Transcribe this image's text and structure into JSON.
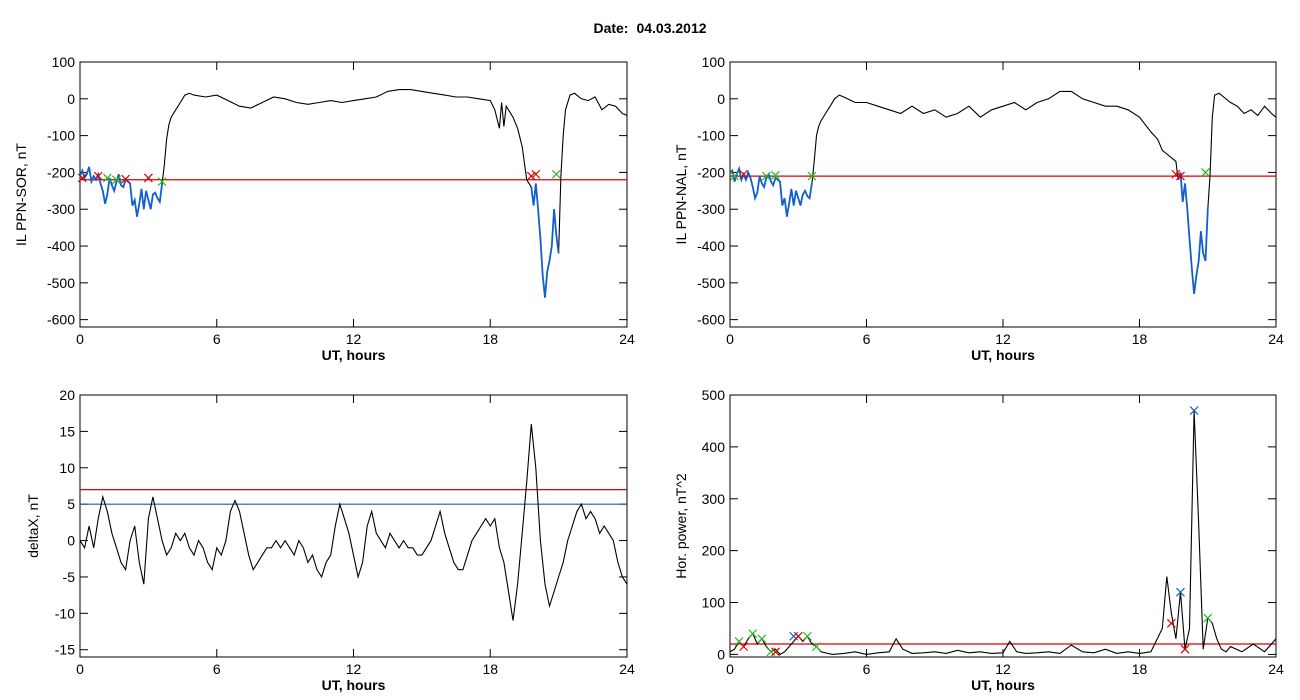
{
  "header": {
    "date_label": "Date:",
    "date_value": "04.03.2012"
  },
  "colors": {
    "trace": "#000000",
    "threshold_red": "#dd0000",
    "threshold_blue": "#1060b0",
    "highlight_blue": "#1060d0",
    "marker_red": "#dd0000",
    "marker_green": "#22bb22",
    "marker_blue": "#1060d0"
  },
  "chart_data": [
    {
      "type": "line",
      "ylabel": "IL PPN-SOR, nT",
      "xlabel": "UT, hours",
      "xlim": [
        0,
        24
      ],
      "ylim": [
        -620,
        100
      ],
      "xticks": [
        0,
        6,
        12,
        18,
        24
      ],
      "yticks": [
        100,
        0,
        -100,
        -200,
        -300,
        -400,
        -500,
        -600
      ],
      "threshold_red": -220,
      "highlight_intervals": [
        [
          0,
          3.6
        ],
        [
          19.8,
          21.0
        ]
      ],
      "x": [
        0,
        0.1,
        0.2,
        0.3,
        0.4,
        0.5,
        0.6,
        0.7,
        0.8,
        0.9,
        1.0,
        1.1,
        1.2,
        1.3,
        1.4,
        1.5,
        1.6,
        1.7,
        1.8,
        1.9,
        2.0,
        2.1,
        2.2,
        2.3,
        2.4,
        2.5,
        2.6,
        2.7,
        2.8,
        2.9,
        3.0,
        3.1,
        3.2,
        3.3,
        3.4,
        3.5,
        3.6,
        3.7,
        3.8,
        3.9,
        4.0,
        4.2,
        4.4,
        4.6,
        4.8,
        5.0,
        5.5,
        6.0,
        6.5,
        7.0,
        7.5,
        8.0,
        8.5,
        9.0,
        9.5,
        10.0,
        10.5,
        11.0,
        11.5,
        12.0,
        12.5,
        13.0,
        13.5,
        14.0,
        14.5,
        15.0,
        15.5,
        16.0,
        16.5,
        17.0,
        17.5,
        18.0,
        18.2,
        18.4,
        18.5,
        18.6,
        18.7,
        18.8,
        19.0,
        19.2,
        19.4,
        19.6,
        19.8,
        19.9,
        20.0,
        20.1,
        20.2,
        20.3,
        20.4,
        20.5,
        20.6,
        20.7,
        20.8,
        20.9,
        21.0,
        21.1,
        21.2,
        21.3,
        21.5,
        21.7,
        22.0,
        22.3,
        22.6,
        22.9,
        23.2,
        23.5,
        23.8,
        24.0
      ],
      "y": [
        -210,
        -195,
        -215,
        -205,
        -185,
        -225,
        -210,
        -220,
        -205,
        -230,
        -250,
        -285,
        -260,
        -215,
        -235,
        -250,
        -225,
        -205,
        -235,
        -240,
        -220,
        -225,
        -230,
        -290,
        -275,
        -320,
        -285,
        -245,
        -300,
        -250,
        -275,
        -300,
        -260,
        -255,
        -270,
        -280,
        -230,
        -180,
        -110,
        -70,
        -50,
        -30,
        -10,
        10,
        15,
        10,
        5,
        10,
        -5,
        -20,
        -25,
        -10,
        5,
        0,
        -10,
        -15,
        -10,
        -5,
        -10,
        -5,
        0,
        5,
        20,
        25,
        25,
        20,
        15,
        10,
        5,
        5,
        0,
        -5,
        -30,
        -80,
        -10,
        -75,
        -20,
        -30,
        -50,
        -80,
        -130,
        -220,
        -240,
        -290,
        -230,
        -300,
        -380,
        -480,
        -540,
        -470,
        -440,
        -400,
        -300,
        -370,
        -420,
        -210,
        -100,
        -30,
        10,
        15,
        0,
        -5,
        5,
        -30,
        -15,
        -20,
        -40,
        -45
      ],
      "markers": [
        {
          "x": 0.1,
          "y": -215,
          "color": "red"
        },
        {
          "x": 0.8,
          "y": -210,
          "color": "red"
        },
        {
          "x": 1.2,
          "y": -215,
          "color": "green"
        },
        {
          "x": 1.6,
          "y": -220,
          "color": "green"
        },
        {
          "x": 2.0,
          "y": -218,
          "color": "red"
        },
        {
          "x": 3.0,
          "y": -215,
          "color": "red"
        },
        {
          "x": 3.6,
          "y": -225,
          "color": "green"
        },
        {
          "x": 19.8,
          "y": -210,
          "color": "red"
        },
        {
          "x": 20.0,
          "y": -205,
          "color": "red"
        },
        {
          "x": 20.9,
          "y": -205,
          "color": "green"
        }
      ]
    },
    {
      "type": "line",
      "ylabel": "IL PPN-NAL, nT",
      "xlabel": "UT, hours",
      "xlim": [
        0,
        24
      ],
      "ylim": [
        -620,
        100
      ],
      "xticks": [
        0,
        6,
        12,
        18,
        24
      ],
      "yticks": [
        100,
        0,
        -100,
        -200,
        -300,
        -400,
        -500,
        -600
      ],
      "threshold_red": -210,
      "highlight_intervals": [
        [
          0,
          3.6
        ],
        [
          19.7,
          21.0
        ]
      ],
      "x": [
        0,
        0.1,
        0.2,
        0.3,
        0.4,
        0.5,
        0.6,
        0.7,
        0.8,
        0.9,
        1.0,
        1.1,
        1.2,
        1.3,
        1.4,
        1.5,
        1.6,
        1.7,
        1.8,
        1.9,
        2.0,
        2.1,
        2.2,
        2.3,
        2.4,
        2.5,
        2.6,
        2.7,
        2.8,
        2.9,
        3.0,
        3.1,
        3.2,
        3.3,
        3.4,
        3.5,
        3.6,
        3.7,
        3.8,
        3.9,
        4.0,
        4.2,
        4.4,
        4.6,
        4.8,
        5.0,
        5.5,
        6.0,
        6.5,
        7.0,
        7.5,
        8.0,
        8.5,
        9.0,
        9.5,
        10.0,
        10.5,
        11.0,
        11.5,
        12.0,
        12.5,
        13.0,
        13.5,
        14.0,
        14.5,
        15.0,
        15.5,
        16.0,
        16.5,
        17.0,
        17.5,
        18.0,
        18.5,
        18.8,
        19.0,
        19.2,
        19.4,
        19.6,
        19.7,
        19.8,
        19.9,
        20.0,
        20.1,
        20.2,
        20.3,
        20.4,
        20.5,
        20.6,
        20.7,
        20.8,
        20.9,
        21.0,
        21.1,
        21.2,
        21.3,
        21.5,
        21.7,
        22.0,
        22.3,
        22.6,
        22.9,
        23.2,
        23.5,
        23.8,
        24.0
      ],
      "y": [
        -200,
        -195,
        -225,
        -205,
        -190,
        -220,
        -205,
        -220,
        -200,
        -215,
        -240,
        -270,
        -255,
        -210,
        -230,
        -240,
        -215,
        -205,
        -225,
        -235,
        -215,
        -220,
        -225,
        -290,
        -270,
        -320,
        -285,
        -245,
        -290,
        -250,
        -270,
        -290,
        -260,
        -250,
        -265,
        -270,
        -230,
        -170,
        -100,
        -75,
        -60,
        -40,
        -20,
        0,
        10,
        5,
        -10,
        -10,
        -20,
        -30,
        -40,
        -20,
        -40,
        -30,
        -50,
        -40,
        -20,
        -50,
        -30,
        -20,
        -10,
        -30,
        -10,
        0,
        20,
        20,
        0,
        -10,
        -20,
        -20,
        -30,
        -50,
        -90,
        -110,
        -140,
        -150,
        -160,
        -170,
        -220,
        -200,
        -280,
        -230,
        -300,
        -380,
        -460,
        -530,
        -480,
        -440,
        -360,
        -420,
        -440,
        -300,
        -210,
        -50,
        10,
        15,
        5,
        -10,
        -20,
        -40,
        -30,
        -45,
        -20,
        -40,
        -50
      ],
      "markers": [
        {
          "x": 0.2,
          "y": -210,
          "color": "green"
        },
        {
          "x": 0.6,
          "y": -205,
          "color": "red"
        },
        {
          "x": 1.6,
          "y": -210,
          "color": "green"
        },
        {
          "x": 2.0,
          "y": -208,
          "color": "green"
        },
        {
          "x": 3.6,
          "y": -210,
          "color": "green"
        },
        {
          "x": 19.6,
          "y": -205,
          "color": "red"
        },
        {
          "x": 19.8,
          "y": -210,
          "color": "red"
        },
        {
          "x": 20.9,
          "y": -200,
          "color": "green"
        }
      ]
    },
    {
      "type": "line",
      "ylabel": "deltaX, nT",
      "xlabel": "UT, hours",
      "xlim": [
        0,
        24
      ],
      "ylim": [
        -16,
        20
      ],
      "xticks": [
        0,
        6,
        12,
        18,
        24
      ],
      "yticks": [
        20,
        15,
        10,
        5,
        0,
        -5,
        -10,
        -15
      ],
      "threshold_red": 7,
      "threshold_blue": 5,
      "x": [
        0,
        0.2,
        0.4,
        0.6,
        0.8,
        1.0,
        1.2,
        1.4,
        1.6,
        1.8,
        2.0,
        2.2,
        2.4,
        2.6,
        2.8,
        3.0,
        3.2,
        3.4,
        3.6,
        3.8,
        4.0,
        4.2,
        4.4,
        4.6,
        4.8,
        5.0,
        5.2,
        5.4,
        5.6,
        5.8,
        6.0,
        6.2,
        6.4,
        6.6,
        6.8,
        7.0,
        7.2,
        7.4,
        7.6,
        7.8,
        8.0,
        8.2,
        8.4,
        8.6,
        8.8,
        9.0,
        9.2,
        9.4,
        9.6,
        9.8,
        10.0,
        10.2,
        10.4,
        10.6,
        10.8,
        11.0,
        11.2,
        11.4,
        11.6,
        11.8,
        12.0,
        12.2,
        12.4,
        12.6,
        12.8,
        13.0,
        13.2,
        13.4,
        13.6,
        13.8,
        14.0,
        14.2,
        14.4,
        14.6,
        14.8,
        15.0,
        15.2,
        15.4,
        15.6,
        15.8,
        16.0,
        16.2,
        16.4,
        16.6,
        16.8,
        17.0,
        17.2,
        17.4,
        17.6,
        17.8,
        18.0,
        18.2,
        18.4,
        18.6,
        18.8,
        19.0,
        19.2,
        19.4,
        19.6,
        19.8,
        20.0,
        20.2,
        20.4,
        20.6,
        20.8,
        21.0,
        21.2,
        21.4,
        21.6,
        21.8,
        22.0,
        22.2,
        22.4,
        22.6,
        22.8,
        23.0,
        23.2,
        23.4,
        23.6,
        23.8,
        24.0
      ],
      "y": [
        0,
        -1,
        2,
        -1,
        3,
        6,
        4,
        1,
        -1,
        -3,
        -4,
        0,
        2,
        -3,
        -6,
        3,
        6,
        3,
        0,
        -2,
        -1,
        1,
        0,
        1,
        -1,
        -2,
        0,
        -1,
        -3,
        -4,
        -1,
        -2,
        0,
        4,
        5.5,
        4,
        1,
        -2,
        -4,
        -3,
        -2,
        -1,
        -1,
        0,
        -1,
        0,
        -1,
        -2,
        0,
        -1,
        -3,
        -2,
        -4,
        -5,
        -3,
        -2,
        2,
        5,
        3,
        1,
        -2,
        -5,
        -3,
        2,
        4,
        1,
        0,
        -1,
        1,
        0,
        -1,
        0,
        -1,
        -1,
        -2,
        -2,
        -1,
        0,
        2,
        4,
        1,
        -1,
        -3,
        -4,
        -4,
        -2,
        0,
        1,
        2,
        3,
        2,
        3,
        -1,
        -3,
        -7,
        -11,
        -6,
        1,
        8,
        16,
        10,
        0,
        -6,
        -9,
        -7,
        -5,
        -3,
        0,
        2,
        4,
        5,
        3,
        4,
        3,
        1,
        2,
        1,
        0,
        -3,
        -5,
        -6
      ],
      "markers": []
    },
    {
      "type": "line",
      "ylabel": "Hor. power, nT^2",
      "xlabel": "UT, hours",
      "xlim": [
        0,
        24
      ],
      "ylim": [
        -5,
        500
      ],
      "xticks": [
        0,
        6,
        12,
        18,
        24
      ],
      "yticks": [
        500,
        400,
        300,
        200,
        100,
        0
      ],
      "threshold_red": 20,
      "x": [
        0,
        0.2,
        0.4,
        0.6,
        0.8,
        1.0,
        1.2,
        1.4,
        1.6,
        1.8,
        2.0,
        2.2,
        2.4,
        2.6,
        2.8,
        3.0,
        3.2,
        3.4,
        3.6,
        3.8,
        4.0,
        4.5,
        5.0,
        5.5,
        6.0,
        6.5,
        7.0,
        7.3,
        7.6,
        8.0,
        8.5,
        9.0,
        9.5,
        10.0,
        10.5,
        11.0,
        11.5,
        12.0,
        12.3,
        12.6,
        13.0,
        13.5,
        14.0,
        14.5,
        15.0,
        15.5,
        16.0,
        16.5,
        17.0,
        17.5,
        18.0,
        18.5,
        19.0,
        19.2,
        19.4,
        19.6,
        19.8,
        20.0,
        20.2,
        20.4,
        20.6,
        20.8,
        21.0,
        21.2,
        21.4,
        21.6,
        21.8,
        22.0,
        22.5,
        23.0,
        23.5,
        24.0
      ],
      "y": [
        5,
        10,
        25,
        15,
        30,
        40,
        20,
        30,
        15,
        5,
        10,
        0,
        5,
        15,
        25,
        35,
        25,
        35,
        20,
        15,
        5,
        0,
        2,
        5,
        0,
        3,
        5,
        30,
        10,
        2,
        3,
        5,
        2,
        8,
        3,
        5,
        2,
        3,
        25,
        5,
        2,
        3,
        5,
        2,
        18,
        5,
        3,
        10,
        2,
        5,
        2,
        5,
        50,
        150,
        80,
        30,
        120,
        10,
        50,
        470,
        250,
        10,
        70,
        60,
        30,
        10,
        5,
        15,
        5,
        20,
        5,
        30
      ],
      "markers": [
        {
          "x": 0.4,
          "y": 25,
          "color": "green"
        },
        {
          "x": 0.6,
          "y": 15,
          "color": "red"
        },
        {
          "x": 1.0,
          "y": 40,
          "color": "green"
        },
        {
          "x": 1.4,
          "y": 30,
          "color": "green"
        },
        {
          "x": 1.8,
          "y": 5,
          "color": "green"
        },
        {
          "x": 2.0,
          "y": 5,
          "color": "red"
        },
        {
          "x": 2.8,
          "y": 35,
          "color": "blue"
        },
        {
          "x": 3.0,
          "y": 35,
          "color": "red"
        },
        {
          "x": 3.4,
          "y": 35,
          "color": "green"
        },
        {
          "x": 3.8,
          "y": 15,
          "color": "green"
        },
        {
          "x": 19.4,
          "y": 60,
          "color": "red"
        },
        {
          "x": 19.8,
          "y": 120,
          "color": "blue"
        },
        {
          "x": 20.0,
          "y": 10,
          "color": "red"
        },
        {
          "x": 20.4,
          "y": 470,
          "color": "blue"
        },
        {
          "x": 21.0,
          "y": 70,
          "color": "green"
        }
      ]
    }
  ]
}
